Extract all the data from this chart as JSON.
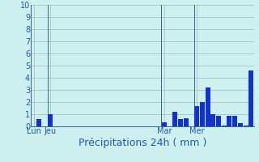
{
  "title": "",
  "xlabel": "Précipitations 24h ( mm )",
  "ylabel": "",
  "ylim": [
    0,
    10
  ],
  "yticks": [
    0,
    1,
    2,
    3,
    4,
    5,
    6,
    7,
    8,
    9,
    10
  ],
  "background_color": "#cff0f0",
  "bar_color": "#1133cc",
  "grid_color": "#99bbbb",
  "day_line_color": "#336688",
  "bar_values": [
    0,
    0.6,
    0,
    1.0,
    0,
    0,
    0,
    0,
    0,
    0,
    0,
    0,
    0,
    0,
    0,
    0,
    0,
    0,
    0,
    0,
    0,
    0,
    0,
    0,
    0.35,
    0,
    1.2,
    0.6,
    0.65,
    0,
    1.7,
    2.0,
    3.2,
    1.0,
    0.9,
    0.1,
    0.85,
    0.9,
    0.3,
    0.1,
    4.6
  ],
  "day_labels": [
    "Lun",
    "Jeu",
    "Mar",
    "Mer"
  ],
  "day_positions": [
    0,
    3,
    24,
    30
  ],
  "xlabel_fontsize": 9,
  "tick_fontsize": 7,
  "label_color": "#2255bb"
}
